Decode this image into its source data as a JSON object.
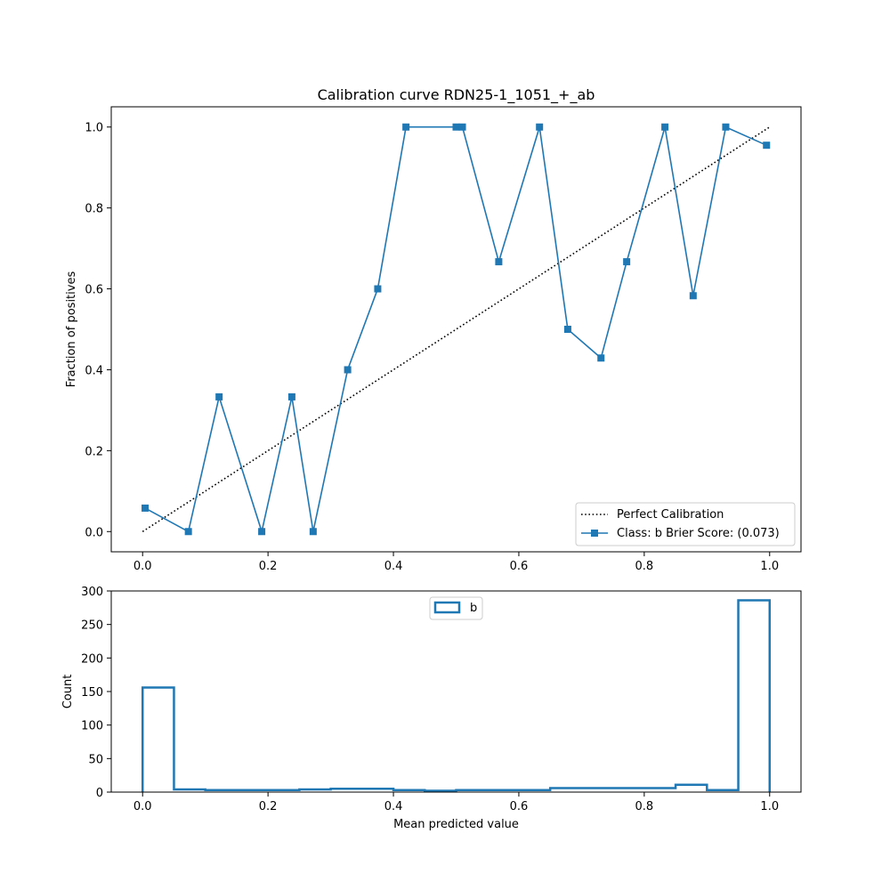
{
  "colors": {
    "series": "#1f77b4",
    "reference": "#000000",
    "legend_border": "#cccccc"
  },
  "chart_data": [
    {
      "type": "line",
      "title": "Calibration curve RDN25-1_1051_+_ab",
      "xlabel": "",
      "ylabel": "Fraction of positives",
      "xlim": [
        -0.05,
        1.05
      ],
      "ylim": [
        -0.05,
        1.05
      ],
      "xticks": [
        "0.0",
        "0.2",
        "0.4",
        "0.6",
        "0.8",
        "1.0"
      ],
      "yticks": [
        "0.0",
        "0.2",
        "0.4",
        "0.6",
        "0.8",
        "1.0"
      ],
      "legend_position": "lower-right",
      "series": [
        {
          "name": "Perfect Calibration",
          "style": "dotted",
          "x": [
            0,
            1
          ],
          "y": [
            0,
            1
          ]
        },
        {
          "name": "Class: b Brier Score: (0.073)",
          "style": "solid-square-markers",
          "x": [
            0.004,
            0.073,
            0.122,
            0.19,
            0.238,
            0.272,
            0.327,
            0.375,
            0.42,
            0.5,
            0.51,
            0.568,
            0.633,
            0.678,
            0.731,
            0.772,
            0.833,
            0.878,
            0.93,
            0.995
          ],
          "y": [
            0.058,
            0.0,
            0.333,
            0.0,
            0.333,
            0.0,
            0.4,
            0.6,
            1.0,
            1.0,
            1.0,
            0.667,
            1.0,
            0.5,
            0.429,
            0.667,
            1.0,
            0.583,
            1.0,
            0.955
          ]
        }
      ]
    },
    {
      "type": "bar",
      "subtype": "step-histogram",
      "title": "",
      "xlabel": "Mean predicted value",
      "ylabel": "Count",
      "xlim": [
        -0.05,
        1.05
      ],
      "ylim": [
        0,
        300
      ],
      "xticks": [
        "0.0",
        "0.2",
        "0.4",
        "0.6",
        "0.8",
        "1.0"
      ],
      "yticks": [
        "0",
        "50",
        "100",
        "150",
        "200",
        "250",
        "300"
      ],
      "legend_position": "upper-center",
      "bin_edges": [
        0.0,
        0.05,
        0.1,
        0.15,
        0.2,
        0.25,
        0.3,
        0.35,
        0.4,
        0.45,
        0.5,
        0.55,
        0.6,
        0.65,
        0.7,
        0.75,
        0.8,
        0.85,
        0.9,
        0.95,
        1.0
      ],
      "series": [
        {
          "name": "b",
          "values": [
            156,
            4,
            3,
            3,
            3,
            4,
            5,
            5,
            3,
            2,
            3,
            3,
            3,
            6,
            6,
            6,
            6,
            11,
            3,
            286
          ]
        }
      ]
    }
  ]
}
